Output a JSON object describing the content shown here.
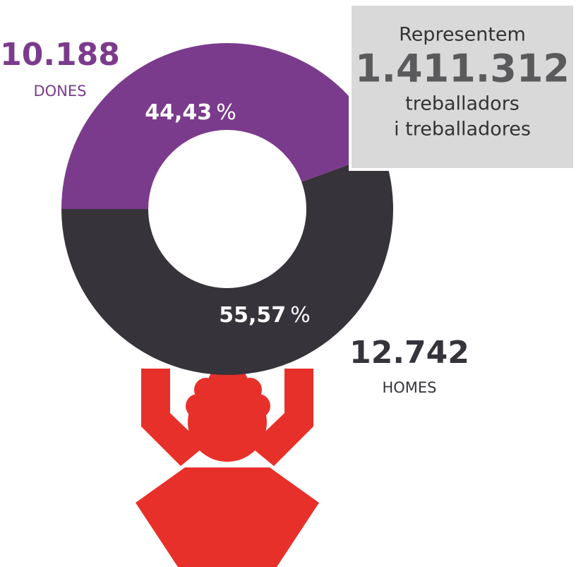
{
  "chart_data": {
    "type": "donut",
    "categories": [
      "DONES",
      "HOMES"
    ],
    "values": [
      44.43,
      55.57
    ],
    "value_labels": [
      "44,43",
      "55,57"
    ],
    "unit": "%",
    "colors": [
      "#7b3b8c",
      "#36333a"
    ],
    "counts": [
      10188,
      12742
    ],
    "count_labels": [
      "10.188",
      "12.742"
    ],
    "box": {
      "line1": "Representem",
      "total": 1411312,
      "total_label": "1.411.312",
      "line2": "treballadors",
      "line3": "i treballadores"
    }
  }
}
